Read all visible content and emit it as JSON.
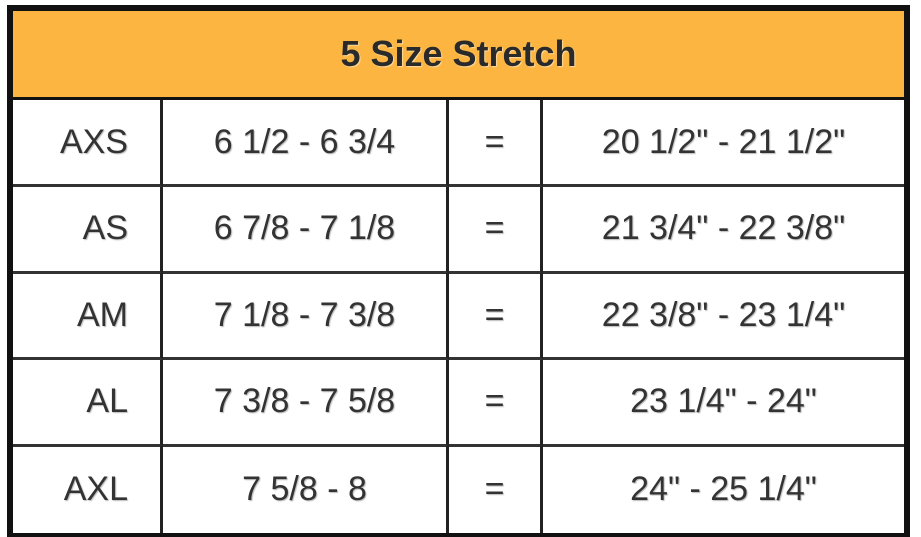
{
  "title": "5 Size Stretch",
  "colors": {
    "header_bg": "#FBB540",
    "border": "#111111"
  },
  "rows": [
    {
      "size": "AXS",
      "hat": "6 1/2 - 6 3/4",
      "eq": "=",
      "inches": "20 1/2\" - 21 1/2\""
    },
    {
      "size": "AS",
      "hat": "6 7/8 - 7 1/8",
      "eq": "=",
      "inches": "21 3/4\" - 22 3/8\""
    },
    {
      "size": "AM",
      "hat": "7 1/8 - 7 3/8",
      "eq": "=",
      "inches": "22 3/8\" - 23 1/4\""
    },
    {
      "size": "AL",
      "hat": "7 3/8 - 7 5/8",
      "eq": "=",
      "inches": "23 1/4\" - 24\""
    },
    {
      "size": "AXL",
      "hat": "7 5/8 - 8",
      "eq": "=",
      "inches": "24\" - 25 1/4\""
    }
  ]
}
